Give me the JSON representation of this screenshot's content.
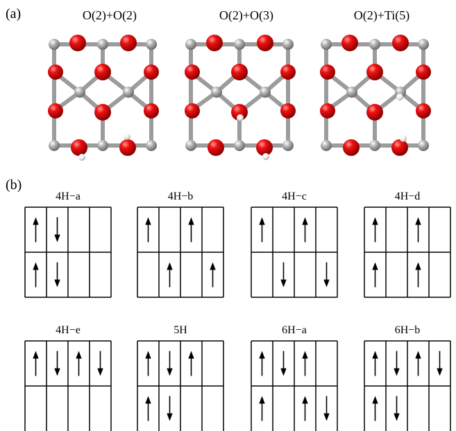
{
  "panel_a": {
    "label": "(a)",
    "structures": [
      {
        "title": "O(2)+O(2)"
      },
      {
        "title": "O(2)+O(3)"
      },
      {
        "title": "O(2)+Ti(5)"
      }
    ],
    "colors": {
      "oxygen": "#e00000",
      "titanium": "#a6a6a6",
      "hydrogen": "#f2f2f2",
      "bond": "#a0a0a0"
    }
  },
  "panel_b": {
    "label": "(b)",
    "configs": [
      {
        "title": "4H−a",
        "top": [
          "up",
          "down",
          "",
          ""
        ],
        "bottom": [
          "up",
          "down",
          "",
          ""
        ]
      },
      {
        "title": "4H−b",
        "top": [
          "up",
          "",
          "up",
          ""
        ],
        "bottom": [
          "",
          "up",
          "",
          "up"
        ]
      },
      {
        "title": "4H−c",
        "top": [
          "up",
          "",
          "up",
          ""
        ],
        "bottom": [
          "",
          "down",
          "",
          "down"
        ]
      },
      {
        "title": "4H−d",
        "top": [
          "up",
          "",
          "up",
          ""
        ],
        "bottom": [
          "up",
          "",
          "up",
          ""
        ]
      },
      {
        "title": "4H−e",
        "top": [
          "up",
          "down",
          "up",
          "down"
        ],
        "bottom": [
          "",
          "",
          "",
          ""
        ]
      },
      {
        "title": "5H",
        "top": [
          "up",
          "down",
          "up",
          ""
        ],
        "bottom": [
          "up",
          "down",
          "",
          ""
        ]
      },
      {
        "title": "6H−a",
        "top": [
          "up",
          "down",
          "up",
          ""
        ],
        "bottom": [
          "up",
          "",
          "up",
          "down"
        ]
      },
      {
        "title": "6H−b",
        "top": [
          "up",
          "down",
          "up",
          "down"
        ],
        "bottom": [
          "up",
          "down",
          "",
          ""
        ]
      }
    ]
  }
}
